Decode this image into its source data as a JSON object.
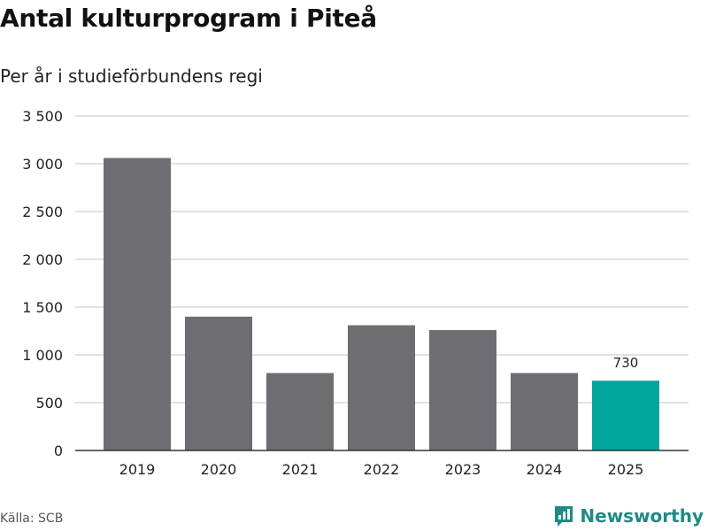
{
  "title": "Antal kulturprogram i Piteå",
  "subtitle": "Per år i studieförbundens regi",
  "source": "Källa: SCB",
  "brand": "Newsworthy",
  "colors": {
    "bar": "#6e6d72",
    "highlight": "#00a69c",
    "grid": "#d9d9d9",
    "axis": "#333333",
    "brand": "#1f8a86"
  },
  "chart_data": {
    "type": "bar",
    "categories": [
      "2019",
      "2020",
      "2021",
      "2022",
      "2023",
      "2024",
      "2025"
    ],
    "values": [
      3060,
      1400,
      810,
      1310,
      1260,
      810,
      730
    ],
    "highlight_index": 6,
    "data_labels": [
      {
        "index": 6,
        "text": "730"
      }
    ],
    "ylim": [
      0,
      3500
    ],
    "yticks": [
      0,
      500,
      1000,
      1500,
      2000,
      2500,
      3000,
      3500
    ],
    "ytick_labels": [
      "0",
      "500",
      "1 000",
      "1 500",
      "2 000",
      "2 500",
      "3 000",
      "3 500"
    ],
    "grid": true,
    "xlabel": "",
    "ylabel": ""
  }
}
